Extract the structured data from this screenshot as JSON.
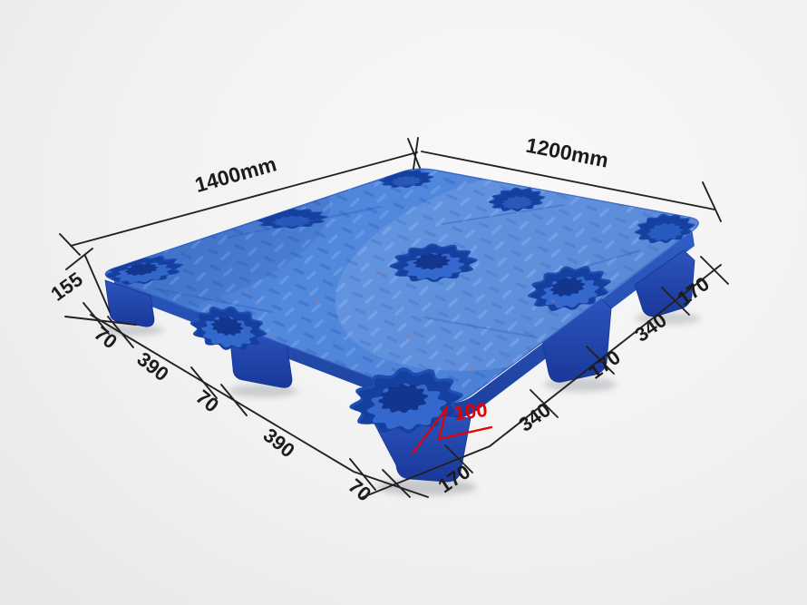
{
  "scene": {
    "background_color": "#efefef",
    "pallet_colors": {
      "deck": "#4a80d6",
      "deck_texture_dark": "#2b5ab8",
      "deck_texture_light": "#8ab2f2",
      "cavity": "#16419f",
      "side_wall": "#2f5ec6",
      "foot": "#2c55be"
    },
    "annotation_color": "#1c1c1c",
    "red_annotation_color": "#e60000"
  },
  "dimensions": {
    "top_left_edge_label": "1400mm",
    "top_right_edge_label": "1200mm",
    "total_height_label": "155",
    "bottom_left_segments": [
      "70",
      "390",
      "70",
      "390",
      "70"
    ],
    "bottom_right_segments": [
      "170",
      "340",
      "170",
      "340",
      "170"
    ],
    "leg_height_label": "100"
  }
}
